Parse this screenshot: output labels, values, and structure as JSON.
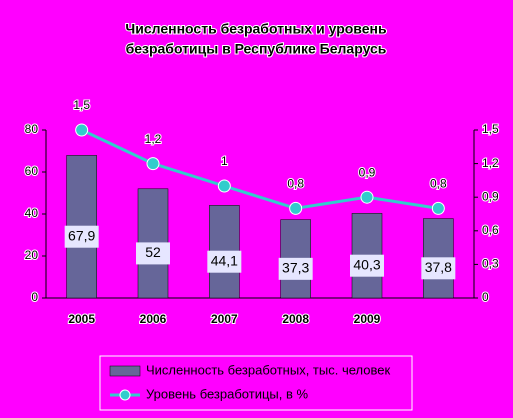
{
  "chart_data": {
    "type": "bar-line",
    "title": [
      "Численность безработных и уровень",
      "безработицы в Республике Беларусь"
    ],
    "categories": [
      "2005",
      "2006",
      "2007",
      "2008",
      "2009",
      null
    ],
    "series": [
      {
        "name": "Численность безработных, тыс. человек",
        "type": "bar",
        "color": "#666699",
        "values": [
          67.9,
          52,
          44.1,
          37.3,
          40.3,
          37.8
        ],
        "value_labels": [
          "67,9",
          "52",
          "44,1",
          "37,3",
          "40,3",
          "37,8"
        ]
      },
      {
        "name": "Уровень безработицы, в %",
        "type": "line",
        "axis": "y2",
        "color": "#33cccc",
        "values": [
          1.5,
          1.2,
          1,
          0.8,
          0.9,
          0.8
        ],
        "value_labels": [
          "1,5",
          "1,2",
          "1",
          "0,8",
          "0,9",
          "0,8"
        ]
      }
    ],
    "ylim": [
      0,
      80
    ],
    "yticks": [
      0,
      20,
      40,
      60,
      80
    ],
    "y2lim": [
      0,
      1.5
    ],
    "y2ticks": [
      0,
      {
        "value": 0.3,
        "label": "0,3"
      },
      {
        "value": 0.6,
        "label": "0,6"
      },
      {
        "value": 0.9,
        "label": "0,9"
      },
      {
        "value": 1.2,
        "label": "1,2"
      },
      {
        "value": 1.5,
        "label": "1,5"
      }
    ],
    "background": "#ff00ff"
  }
}
